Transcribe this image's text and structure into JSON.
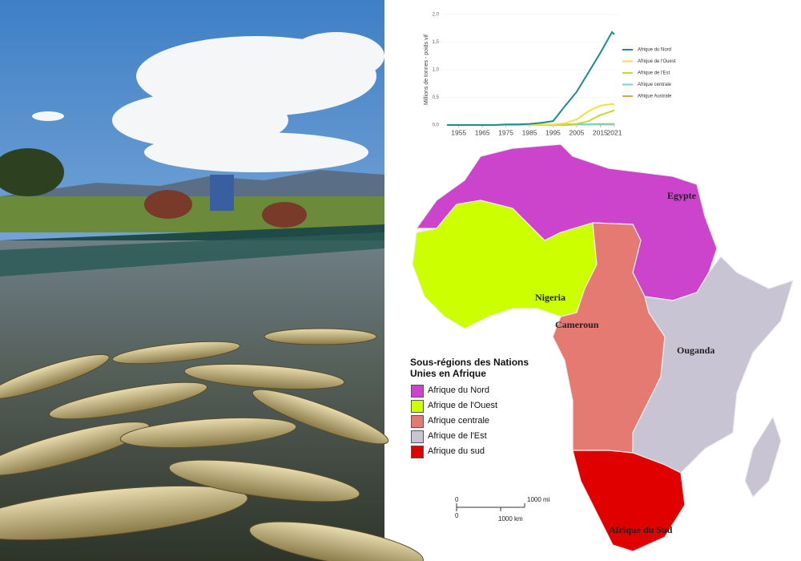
{
  "chart_data": {
    "type": "line",
    "y_label": "Millions de tonnes - poids vif",
    "x": [
      1950,
      1955,
      1960,
      1965,
      1970,
      1975,
      1980,
      1985,
      1990,
      1995,
      2000,
      2005,
      2010,
      2015,
      2020,
      2021
    ],
    "series": [
      {
        "name": "Afrique du Nord",
        "color": "#1e8c8c",
        "values": [
          0.0,
          0.0,
          0.0,
          0.0,
          0.0,
          0.01,
          0.01,
          0.02,
          0.04,
          0.07,
          0.34,
          0.6,
          0.95,
          1.3,
          1.68,
          1.64
        ]
      },
      {
        "name": "Afrique de l'Ouest",
        "color": "#f2e23a",
        "values": [
          0.0,
          0.0,
          0.0,
          0.0,
          0.0,
          0.0,
          0.0,
          0.0,
          0.01,
          0.01,
          0.03,
          0.1,
          0.25,
          0.35,
          0.38,
          0.37
        ]
      },
      {
        "name": "Afrique de l'Est",
        "color": "#c5d63a",
        "values": [
          0.0,
          0.0,
          0.0,
          0.0,
          0.0,
          0.0,
          0.0,
          0.0,
          0.0,
          0.0,
          0.01,
          0.02,
          0.07,
          0.18,
          0.25,
          0.27
        ]
      },
      {
        "name": "Afrique centrale",
        "color": "#6fd6c8",
        "values": [
          0.0,
          0.0,
          0.0,
          0.0,
          0.0,
          0.0,
          0.0,
          0.0,
          0.0,
          0.0,
          0.0,
          0.01,
          0.01,
          0.02,
          0.02,
          0.02
        ]
      },
      {
        "name": "Afrique Australe",
        "color": "#e8a040",
        "values": [
          0.0,
          0.0,
          0.0,
          0.0,
          0.0,
          0.0,
          0.0,
          0.0,
          0.0,
          0.0,
          0.0,
          0.01,
          0.01,
          0.01,
          0.01,
          0.01
        ]
      }
    ],
    "xlim": [
      1950,
      2021
    ],
    "xticks": [
      1955,
      1965,
      1975,
      1985,
      1995,
      2005,
      2015,
      2021
    ],
    "ylim": [
      0,
      2
    ],
    "yticks": [
      {
        "value": 0,
        "label": "0,0"
      },
      {
        "value": 0.5,
        "label": "0,5"
      },
      {
        "value": 1,
        "label": "1,0"
      },
      {
        "value": 1.5,
        "label": "1,5"
      },
      {
        "value": 2,
        "label": "2,0"
      }
    ],
    "grid": true,
    "legend": "right"
  },
  "map": {
    "labels": [
      "Egypte",
      "Nigeria",
      "Cameroun",
      "Ouganda",
      "Afrique du Sud"
    ],
    "legend": {
      "title": "Sous-régions des Nations Unies en Afrique",
      "items": [
        {
          "name": "Afrique du Nord",
          "color": "#cc44cc"
        },
        {
          "name": "Afrique de l'Ouest",
          "color": "#ccff00"
        },
        {
          "name": "Afrique centrale",
          "color": "#e57a72"
        },
        {
          "name": "Afrique de l'Est",
          "color": "#c8c4d4"
        },
        {
          "name": "Afrique du sud",
          "color": "#e00000"
        }
      ]
    },
    "scale": {
      "zero_mi": "0",
      "mi": "1000 mi",
      "zero_km": "0",
      "km": "1000 km"
    }
  }
}
